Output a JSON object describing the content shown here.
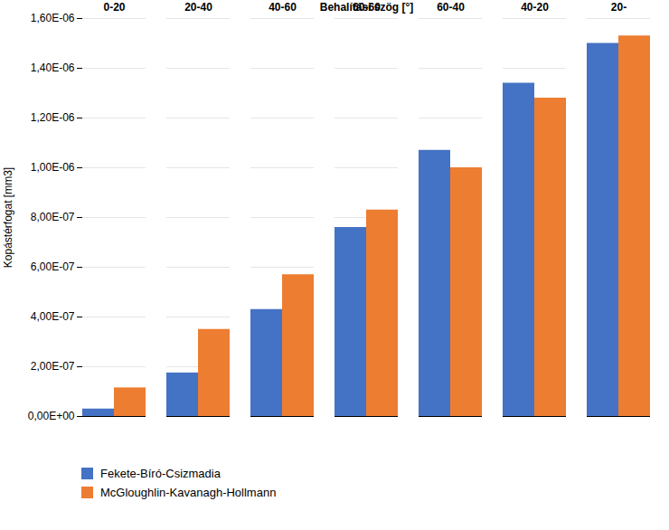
{
  "chart_data": {
    "type": "bar",
    "categories": [
      "0-20",
      "20-40",
      "40-60",
      "60-60",
      "60-40",
      "40-20",
      "20-"
    ],
    "series": [
      {
        "name": "Fekete-Bíró-Csizmadia",
        "color": "#4472C4",
        "values": [
          3e-08,
          1.75e-07,
          4.3e-07,
          7.6e-07,
          1.07e-06,
          1.34e-06,
          1.5e-06
        ]
      },
      {
        "name": "McGloughlin-Kavanagh-Hollmann",
        "color": "#ED7D31",
        "values": [
          1.15e-07,
          3.5e-07,
          5.7e-07,
          8.3e-07,
          1e-06,
          1.28e-06,
          1.53e-06
        ]
      }
    ],
    "xlabel": "Behalítási szög [°]",
    "ylabel": "Kopástérfogat [mm3]",
    "ylim": [
      0,
      1.6e-06
    ],
    "yticks": [
      {
        "value": 0,
        "label": "0,00E+00"
      },
      {
        "value": 2e-07,
        "label": "2,00E-07"
      },
      {
        "value": 4e-07,
        "label": "4,00E-07"
      },
      {
        "value": 6e-07,
        "label": "6,00E-07"
      },
      {
        "value": 8e-07,
        "label": "8,00E-07"
      },
      {
        "value": 1e-06,
        "label": "1,00E-06"
      },
      {
        "value": 1.2e-06,
        "label": "1,20E-06"
      },
      {
        "value": 1.4e-06,
        "label": "1,40E-06"
      },
      {
        "value": 1.6e-06,
        "label": "1,60E-06"
      }
    ],
    "grid": true,
    "legend": "bottom"
  }
}
